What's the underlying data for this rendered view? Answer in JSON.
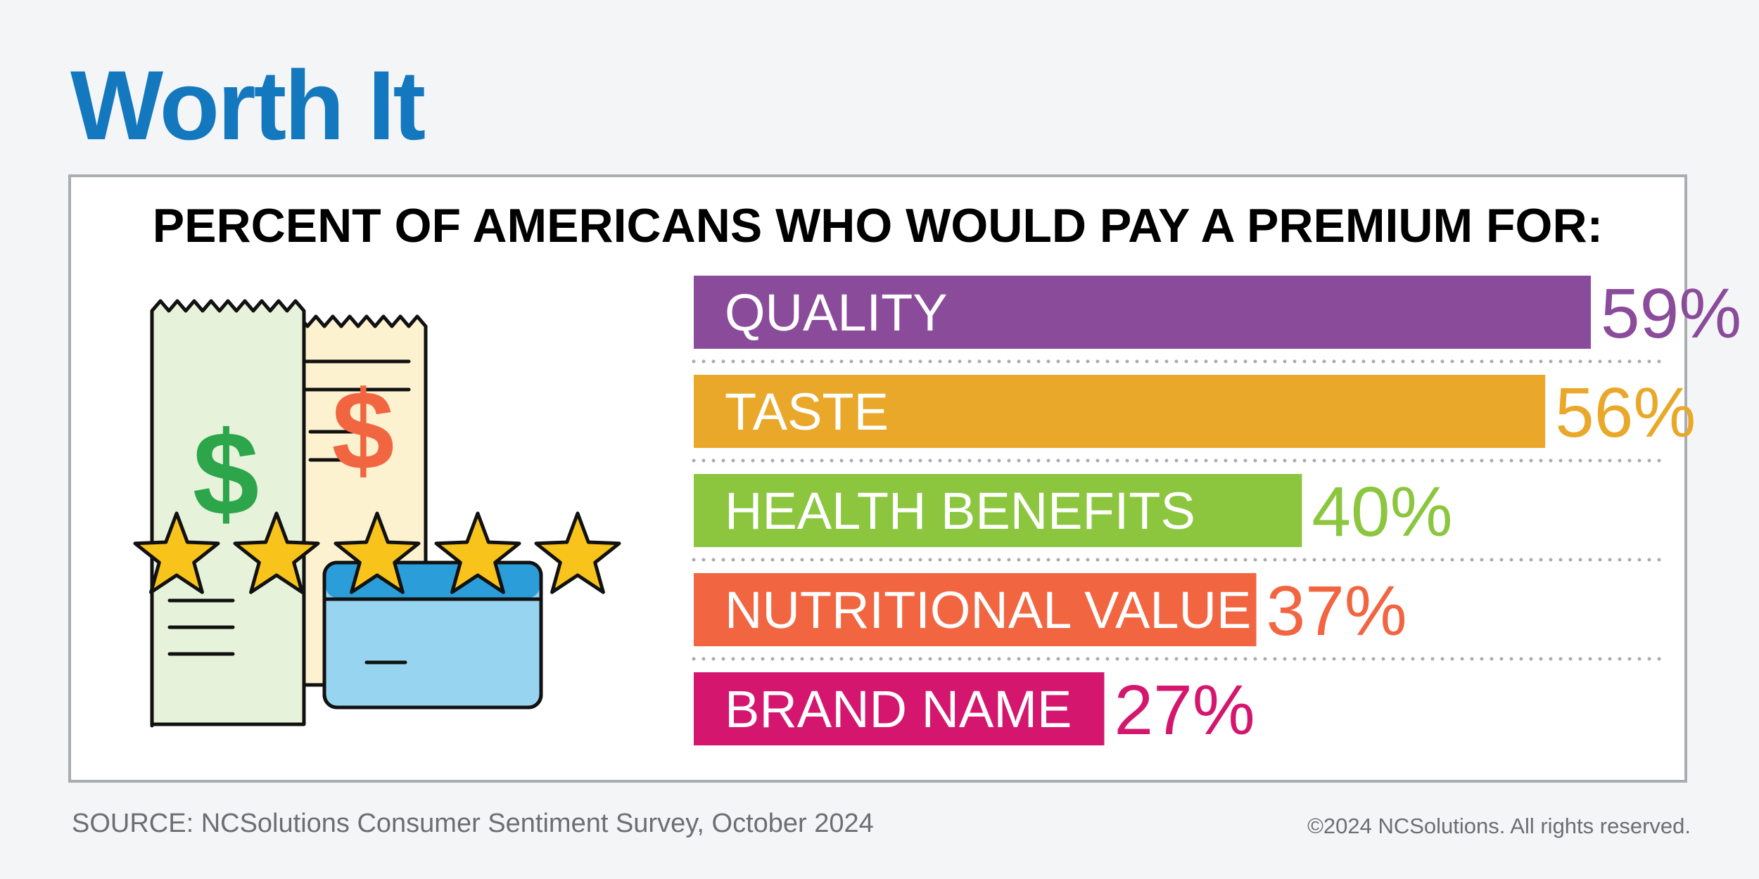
{
  "header": {
    "title": "Worth It"
  },
  "chart_data": {
    "type": "bar",
    "orientation": "horizontal",
    "title": "PERCENT OF AMERICANS WHO WOULD PAY A PREMIUM FOR:",
    "categories": [
      "QUALITY",
      "TASTE",
      "HEALTH BENEFITS",
      "NUTRITIONAL VALUE",
      "BRAND NAME"
    ],
    "values": [
      59,
      56,
      40,
      37,
      27
    ],
    "value_labels": [
      "59%",
      "56%",
      "40%",
      "37%",
      "27%"
    ],
    "colors": [
      "#8b4b9b",
      "#e9a829",
      "#8cc63f",
      "#f26541",
      "#d4166f"
    ],
    "xlim": [
      0,
      59
    ],
    "grid": false,
    "legend": "none"
  },
  "illustration": {
    "icons": [
      "receipt-icon",
      "dollar-icon",
      "star-icon",
      "credit-card-icon"
    ],
    "colors": {
      "receipt_green": "#e6f2d9",
      "receipt_yellow": "#fdf2d0",
      "dollar_green": "#2da54a",
      "dollar_orange": "#f26541",
      "star": "#f8c41b",
      "card": "#97d4f0",
      "card_stripe": "#2b9ed9"
    }
  },
  "footer": {
    "source": "SOURCE: NCSolutions Consumer Sentiment Survey, October 2024",
    "copyright": "©2024 NCSolutions. All rights reserved."
  }
}
